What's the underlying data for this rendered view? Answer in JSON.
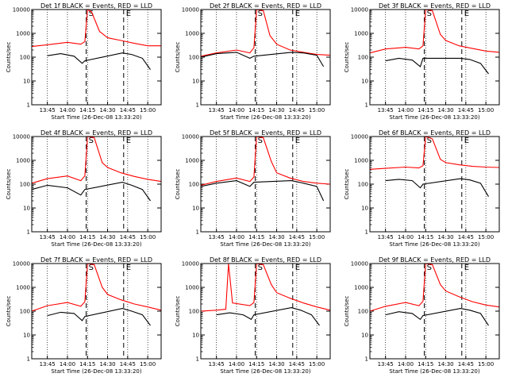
{
  "colors": {
    "background": "#ffffff",
    "axes": "#000000",
    "events": "#000000",
    "lld": "#ff0000",
    "grid": "#000000"
  },
  "chart_data": [
    {
      "type": "line",
      "title": "Det 1f BLACK = Events, RED = LLD",
      "xlabel": "Start Time (26-Dec-08 13:33:20)",
      "ylabel": "Counts/sec",
      "x_ticks": [
        "13:45",
        "14:00",
        "14:15",
        "14:30",
        "14:45",
        "15:00"
      ],
      "y_ticks": [
        "1",
        "10",
        "100",
        "1000",
        "10000"
      ],
      "ylim": [
        1,
        10000
      ],
      "yscale": "log",
      "markers": [
        {
          "time": "14:14",
          "label": "S"
        },
        {
          "time": "14:42",
          "label": "E"
        }
      ],
      "series": [
        {
          "x": [
            "13:33",
            "13:45",
            "14:00",
            "14:10",
            "14:13",
            "14:15",
            "14:18",
            "14:24",
            "14:30",
            "14:40",
            "14:50",
            "15:00",
            "15:10"
          ],
          "values": [
            280,
            330,
            420,
            350,
            450,
            11000,
            8000,
            1200,
            650,
            500,
            380,
            300,
            300
          ]
        },
        {
          "x": [
            "13:45",
            "13:55",
            "14:05",
            "14:11",
            "14:13",
            "14:41",
            "14:48",
            "14:56",
            "15:02"
          ],
          "values": [
            115,
            140,
            110,
            55,
            70,
            150,
            130,
            90,
            30
          ]
        }
      ]
    },
    {
      "type": "line",
      "title": "Det 2f BLACK = Events, RED = LLD",
      "xlabel": "Start Time (26-Dec-08 13:33:20)",
      "ylabel": "Counts/sec",
      "x_ticks": [
        "13:45",
        "14:00",
        "14:15",
        "14:30",
        "14:45",
        "15:00"
      ],
      "y_ticks": [
        "1",
        "10",
        "100",
        "1000",
        "10000"
      ],
      "ylim": [
        1,
        10000
      ],
      "yscale": "log",
      "markers": [
        {
          "time": "14:14",
          "label": "S"
        },
        {
          "time": "14:42",
          "label": "E"
        }
      ],
      "series": [
        {
          "x": [
            "13:33",
            "13:45",
            "14:00",
            "14:10",
            "14:13",
            "14:15",
            "14:20",
            "14:25",
            "14:30",
            "14:40",
            "14:50",
            "15:00",
            "15:10"
          ],
          "values": [
            110,
            150,
            200,
            150,
            250,
            10000,
            9000,
            800,
            350,
            200,
            160,
            130,
            120
          ]
        },
        {
          "x": [
            "13:33",
            "13:45",
            "14:00",
            "14:10",
            "14:13",
            "14:41",
            "14:50",
            "15:00",
            "15:05"
          ],
          "values": [
            100,
            140,
            160,
            90,
            110,
            160,
            150,
            120,
            40
          ]
        }
      ]
    },
    {
      "type": "line",
      "title": "Det 3f BLACK = Events, RED = LLD",
      "xlabel": "Start Time (26-Dec-08 13:33:20)",
      "ylabel": "Counts/sec",
      "x_ticks": [
        "13:45",
        "14:00",
        "14:15",
        "14:30",
        "14:45",
        "15:00"
      ],
      "y_ticks": [
        "1",
        "10",
        "100",
        "1000",
        "10000"
      ],
      "ylim": [
        1,
        10000
      ],
      "yscale": "log",
      "markers": [
        {
          "time": "14:14",
          "label": "S"
        },
        {
          "time": "14:42",
          "label": "E"
        }
      ],
      "series": [
        {
          "x": [
            "13:33",
            "13:45",
            "14:00",
            "14:10",
            "14:13",
            "14:15",
            "14:20",
            "14:26",
            "14:30",
            "14:40",
            "14:50",
            "15:00",
            "15:10"
          ],
          "values": [
            150,
            220,
            260,
            220,
            300,
            10000,
            9000,
            900,
            500,
            300,
            230,
            180,
            160
          ]
        },
        {
          "x": [
            "13:45",
            "13:55",
            "14:05",
            "14:11",
            "14:13",
            "14:41",
            "14:48",
            "14:56",
            "15:02"
          ],
          "values": [
            70,
            90,
            75,
            40,
            90,
            90,
            80,
            55,
            20
          ]
        }
      ]
    },
    {
      "type": "line",
      "title": "Det 4f BLACK = Events, RED = LLD",
      "xlabel": "Start Time (26-Dec-08 13:33:20)",
      "ylabel": "Counts/sec",
      "x_ticks": [
        "13:45",
        "14:00",
        "14:15",
        "14:30",
        "14:45",
        "15:00"
      ],
      "y_ticks": [
        "1",
        "10",
        "100",
        "1000",
        "10000"
      ],
      "ylim": [
        1,
        10000
      ],
      "yscale": "log",
      "markers": [
        {
          "time": "14:14",
          "label": "S"
        },
        {
          "time": "14:42",
          "label": "E"
        }
      ],
      "series": [
        {
          "x": [
            "13:33",
            "13:45",
            "14:00",
            "14:10",
            "14:13",
            "14:15",
            "14:20",
            "14:26",
            "14:30",
            "14:40",
            "14:50",
            "15:00",
            "15:10"
          ],
          "values": [
            110,
            170,
            220,
            140,
            220,
            10000,
            9000,
            800,
            500,
            300,
            210,
            160,
            130
          ]
        },
        {
          "x": [
            "13:33",
            "13:45",
            "14:00",
            "14:10",
            "14:13",
            "14:41",
            "14:48",
            "14:56",
            "15:02"
          ],
          "values": [
            60,
            90,
            70,
            35,
            60,
            120,
            90,
            60,
            20
          ]
        }
      ]
    },
    {
      "type": "line",
      "title": "Det 5f BLACK = Events, RED = LLD",
      "xlabel": "Start Time (26-Dec-08 13:33:20)",
      "ylabel": "Counts/sec",
      "x_ticks": [
        "13:45",
        "14:00",
        "14:15",
        "14:30",
        "14:45",
        "15:00"
      ],
      "y_ticks": [
        "1",
        "10",
        "100",
        "1000",
        "10000"
      ],
      "ylim": [
        1,
        10000
      ],
      "yscale": "log",
      "markers": [
        {
          "time": "14:14",
          "label": "S"
        },
        {
          "time": "14:42",
          "label": "E"
        }
      ],
      "series": [
        {
          "x": [
            "13:33",
            "13:45",
            "14:00",
            "14:10",
            "14:13",
            "14:15",
            "14:20",
            "14:26",
            "14:30",
            "14:40",
            "14:50",
            "15:00",
            "15:10"
          ],
          "values": [
            90,
            130,
            180,
            130,
            200,
            10000,
            9000,
            900,
            300,
            180,
            130,
            110,
            100
          ]
        },
        {
          "x": [
            "13:33",
            "13:45",
            "14:00",
            "14:10",
            "14:13",
            "14:41",
            "14:50",
            "15:00",
            "15:05"
          ],
          "values": [
            80,
            110,
            140,
            80,
            120,
            140,
            110,
            80,
            20
          ]
        }
      ]
    },
    {
      "type": "line",
      "title": "Det 6f BLACK = Events, RED = LLD",
      "xlabel": "Start Time (26-Dec-08 13:33:20)",
      "ylabel": "Counts/sec",
      "x_ticks": [
        "13:45",
        "14:00",
        "14:15",
        "14:30",
        "14:45",
        "15:00"
      ],
      "y_ticks": [
        "1",
        "10",
        "100",
        "1000",
        "10000"
      ],
      "ylim": [
        1,
        10000
      ],
      "yscale": "log",
      "markers": [
        {
          "time": "14:14",
          "label": "S"
        },
        {
          "time": "14:42",
          "label": "E"
        }
      ],
      "series": [
        {
          "x": [
            "13:33",
            "13:45",
            "14:00",
            "14:10",
            "14:13",
            "14:15",
            "14:20",
            "14:26",
            "14:30",
            "14:40",
            "14:50",
            "15:00",
            "15:10"
          ],
          "values": [
            420,
            460,
            520,
            480,
            600,
            10000,
            8000,
            1100,
            800,
            650,
            560,
            520,
            500
          ]
        },
        {
          "x": [
            "13:45",
            "13:55",
            "14:05",
            "14:11",
            "14:13",
            "14:41",
            "14:48",
            "14:56",
            "15:02"
          ],
          "values": [
            140,
            160,
            140,
            70,
            100,
            170,
            150,
            110,
            30
          ]
        }
      ]
    },
    {
      "type": "line",
      "title": "Det 7f BLACK = Events, RED = LLD",
      "xlabel": "Start Time (26-Dec-08 13:33:20)",
      "ylabel": "Counts/sec",
      "x_ticks": [
        "13:45",
        "14:00",
        "14:15",
        "14:30",
        "14:45",
        "15:00"
      ],
      "y_ticks": [
        "1",
        "10",
        "100",
        "1000",
        "10000"
      ],
      "ylim": [
        1,
        10000
      ],
      "yscale": "log",
      "markers": [
        {
          "time": "14:14",
          "label": "S"
        },
        {
          "time": "14:42",
          "label": "E"
        }
      ],
      "series": [
        {
          "x": [
            "13:33",
            "13:45",
            "14:00",
            "14:10",
            "14:13",
            "14:15",
            "14:20",
            "14:26",
            "14:30",
            "14:40",
            "14:50",
            "15:00",
            "15:10"
          ],
          "values": [
            100,
            170,
            230,
            160,
            250,
            10000,
            9000,
            1000,
            500,
            300,
            200,
            150,
            110
          ]
        },
        {
          "x": [
            "13:45",
            "13:55",
            "14:05",
            "14:11",
            "14:13",
            "14:41",
            "14:48",
            "14:56",
            "15:02"
          ],
          "values": [
            65,
            90,
            80,
            40,
            60,
            130,
            100,
            70,
            25
          ]
        }
      ]
    },
    {
      "type": "line",
      "title": "Det 8f BLACK = Events, RED = LLD",
      "xlabel": "Start Time (26-Dec-08 13:33:20)",
      "ylabel": "Counts/sec",
      "x_ticks": [
        "13:45",
        "14:00",
        "14:15",
        "14:30",
        "14:45",
        "15:00"
      ],
      "y_ticks": [
        "1",
        "10",
        "100",
        "1000",
        "10000"
      ],
      "ylim": [
        1,
        10000
      ],
      "yscale": "log",
      "markers": [
        {
          "time": "14:14",
          "label": "S"
        },
        {
          "time": "14:42",
          "label": "E"
        }
      ],
      "series": [
        {
          "x": [
            "13:33",
            "13:45",
            "13:52",
            "13:54",
            "13:57",
            "14:10",
            "14:13",
            "14:15",
            "14:20",
            "14:26",
            "14:30",
            "14:40",
            "14:50",
            "15:00",
            "15:10"
          ],
          "values": [
            100,
            110,
            120,
            10000,
            220,
            170,
            230,
            10000,
            9000,
            1300,
            600,
            350,
            220,
            150,
            110
          ]
        },
        {
          "x": [
            "13:45",
            "13:55",
            "14:05",
            "14:11",
            "14:13",
            "14:41",
            "14:48",
            "14:56",
            "15:02"
          ],
          "values": [
            70,
            85,
            70,
            45,
            70,
            140,
            110,
            70,
            25
          ]
        }
      ]
    },
    {
      "type": "line",
      "title": "Det 9f BLACK = Events, RED = LLD",
      "xlabel": "Start Time (26-Dec-08 13:33:20)",
      "ylabel": "Counts/sec",
      "x_ticks": [
        "13:45",
        "14:00",
        "14:15",
        "14:30",
        "14:45",
        "15:00"
      ],
      "y_ticks": [
        "1",
        "10",
        "100",
        "1000",
        "10000"
      ],
      "ylim": [
        1,
        10000
      ],
      "yscale": "log",
      "markers": [
        {
          "time": "14:14",
          "label": "S"
        },
        {
          "time": "14:42",
          "label": "E"
        }
      ],
      "series": [
        {
          "x": [
            "13:33",
            "13:45",
            "14:00",
            "14:10",
            "14:13",
            "14:15",
            "14:20",
            "14:26",
            "14:30",
            "14:40",
            "14:50",
            "15:00",
            "15:10"
          ],
          "values": [
            100,
            160,
            230,
            170,
            260,
            10000,
            9000,
            1300,
            700,
            400,
            250,
            180,
            150
          ]
        },
        {
          "x": [
            "13:45",
            "13:55",
            "14:05",
            "14:11",
            "14:13",
            "14:41",
            "14:48",
            "14:56",
            "15:02"
          ],
          "values": [
            70,
            95,
            80,
            45,
            65,
            130,
            110,
            80,
            25
          ]
        }
      ]
    }
  ]
}
